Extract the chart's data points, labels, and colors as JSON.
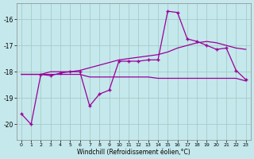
{
  "xlabel": "Windchill (Refroidissement éolien,°C)",
  "background_color": "#c5e8ec",
  "grid_color": "#9dc8c0",
  "line_color": "#990099",
  "xlim": [
    -0.5,
    23.5
  ],
  "ylim": [
    -20.6,
    -15.4
  ],
  "yticks": [
    -20,
    -19,
    -18,
    -17,
    -16
  ],
  "xticks": [
    0,
    1,
    2,
    3,
    4,
    5,
    6,
    7,
    8,
    9,
    10,
    11,
    12,
    13,
    14,
    15,
    16,
    17,
    18,
    19,
    20,
    21,
    22,
    23
  ],
  "hours": [
    0,
    1,
    2,
    3,
    4,
    5,
    6,
    7,
    8,
    9,
    10,
    11,
    12,
    13,
    14,
    15,
    16,
    17,
    18,
    19,
    20,
    21,
    22,
    23
  ],
  "line_jagged": [
    -19.6,
    -20.0,
    -18.1,
    -18.15,
    -18.05,
    -18.0,
    -18.0,
    -19.3,
    -18.85,
    -18.7,
    -17.6,
    -17.6,
    -17.6,
    -17.55,
    -17.55,
    -15.7,
    -15.75,
    -16.75,
    -16.85,
    -17.0,
    -17.15,
    -17.1,
    -17.95,
    -18.3
  ],
  "line_smooth": [
    -18.1,
    -18.1,
    -18.1,
    -18.0,
    -18.0,
    -18.0,
    -17.95,
    -17.85,
    -17.75,
    -17.65,
    -17.55,
    -17.5,
    -17.45,
    -17.4,
    -17.35,
    -17.25,
    -17.1,
    -17.0,
    -16.9,
    -16.85,
    -16.9,
    -17.0,
    -17.1,
    -17.15
  ],
  "line_flat": [
    -18.1,
    -18.1,
    -18.1,
    -18.1,
    -18.1,
    -18.1,
    -18.1,
    -18.2,
    -18.2,
    -18.2,
    -18.2,
    -18.2,
    -18.2,
    -18.2,
    -18.25,
    -18.25,
    -18.25,
    -18.25,
    -18.25,
    -18.25,
    -18.25,
    -18.25,
    -18.25,
    -18.35
  ]
}
